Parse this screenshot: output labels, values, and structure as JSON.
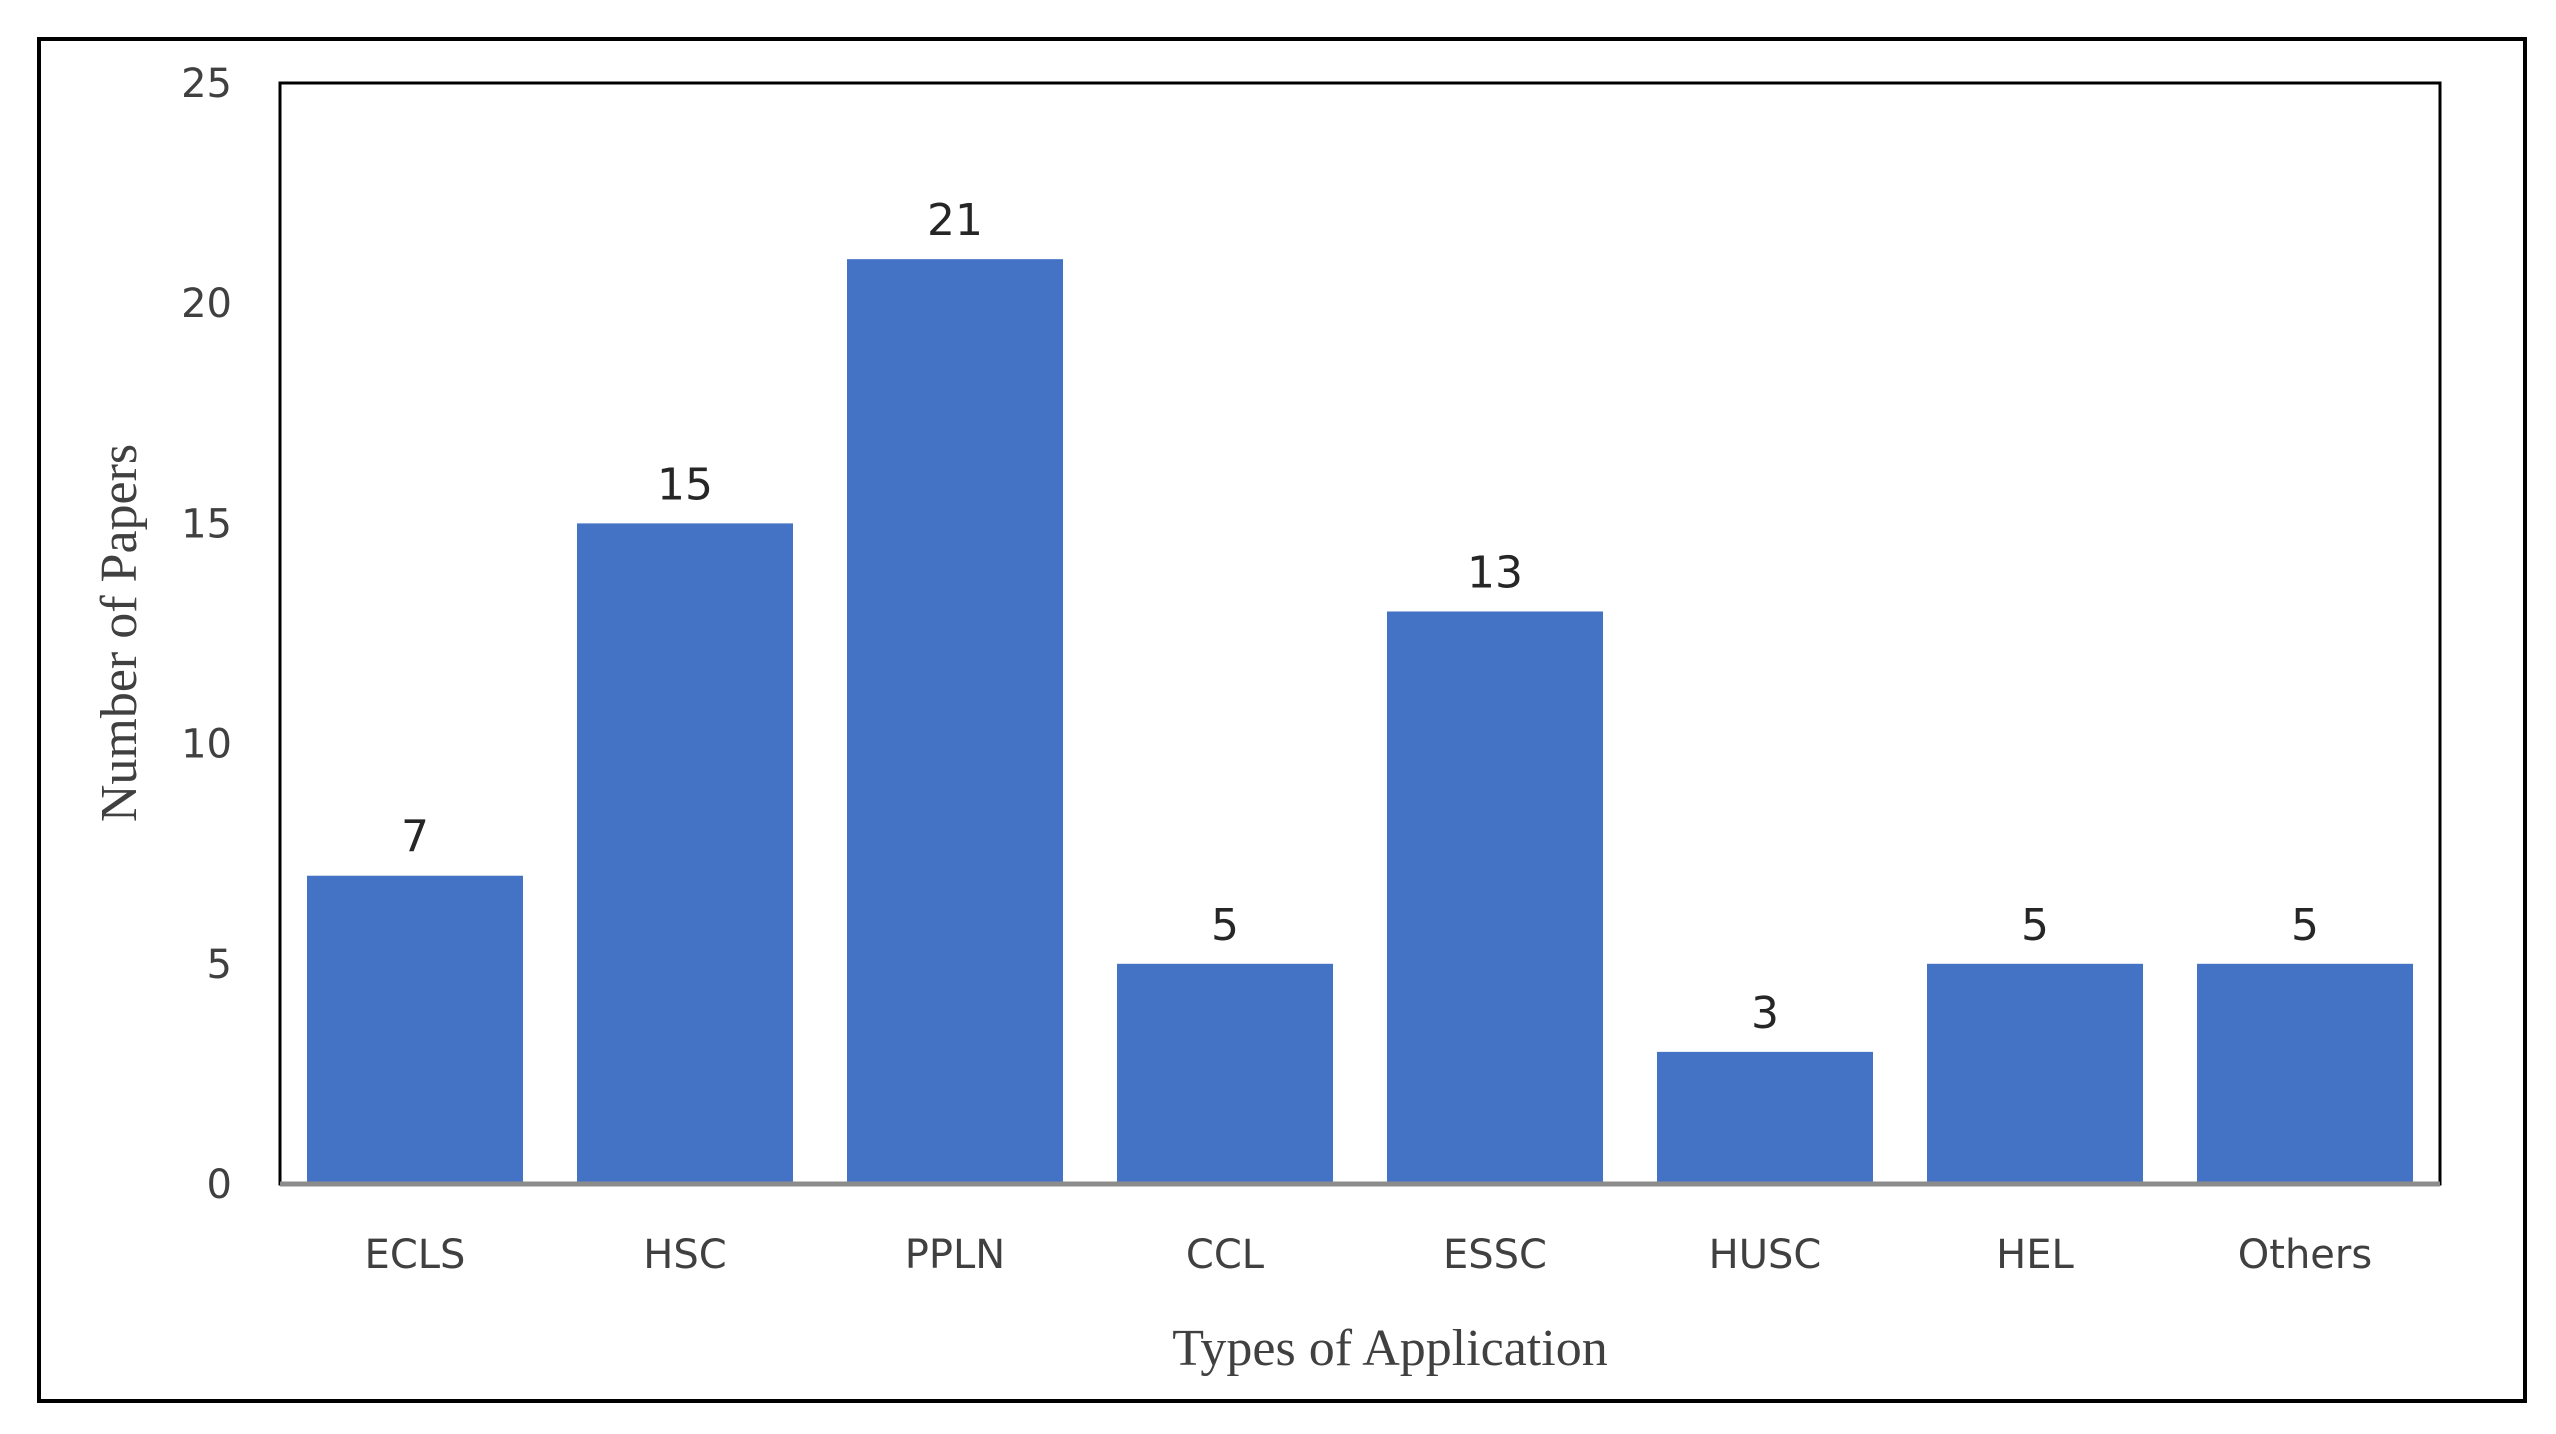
{
  "chart_data": {
    "type": "bar",
    "title": "",
    "xlabel": "Types of Application",
    "ylabel": "Number of Papers",
    "categories": [
      "ECLS",
      "HSC",
      "PPLN",
      "CCL",
      "ESSC",
      "HUSC",
      "HEL",
      "Others"
    ],
    "values": [
      7,
      15,
      21,
      5,
      13,
      3,
      5,
      5
    ],
    "data_labels": [
      "7",
      "15",
      "21",
      "5",
      "13",
      "3",
      "5",
      "5"
    ],
    "yticks": [
      "0",
      "5",
      "10",
      "15",
      "20",
      "25"
    ],
    "ylim": [
      0,
      25
    ],
    "grid": false,
    "legend": "none",
    "colors": {
      "bar": "#4472C4",
      "axis": "#8C8C8C",
      "plot_border": "#000000"
    }
  }
}
